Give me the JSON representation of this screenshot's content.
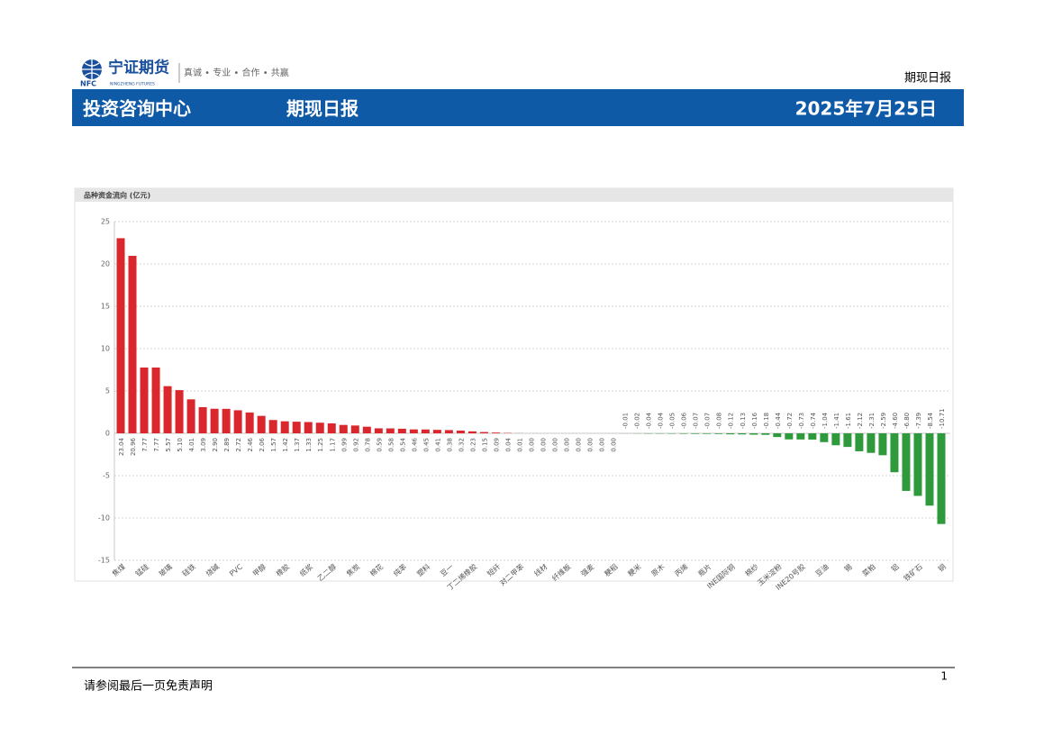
{
  "header": {
    "logo_text": "宁证期货",
    "logo_abbr": "NFC",
    "logo_en": "NINGZHENG FUTURES",
    "slogan": "真诚 • 专业 • 合作 • 共赢",
    "report_name": "期现日报"
  },
  "banner": {
    "department": "投资咨询中心",
    "title": "期现日报",
    "date": "2025年7月25日"
  },
  "chart_data": {
    "type": "bar",
    "title": "品种资金流向 (亿元)",
    "categories": [
      "焦煤",
      null,
      "锰硅",
      null,
      "玻璃",
      null,
      "硅铁",
      null,
      "烧碱",
      null,
      "PVC",
      null,
      "甲醇",
      null,
      "橡胶",
      null,
      "纸浆",
      null,
      "乙二醇",
      null,
      "焦炭",
      null,
      "棉花",
      null,
      "纯苯",
      null,
      "塑料",
      null,
      "豆一",
      null,
      "丁二烯橡胶",
      null,
      "短纤",
      null,
      "对二甲苯",
      null,
      "线材",
      null,
      "纤维板",
      null,
      "强麦",
      null,
      "粳稻",
      null,
      "粳米",
      null,
      "原木",
      null,
      "丙烯",
      null,
      "瓶片",
      null,
      "INE国际铜",
      null,
      "棉纱",
      null,
      "玉米淀粉",
      null,
      "INE20号胶",
      null,
      "豆油",
      null,
      "锡",
      null,
      "菜粕",
      null,
      "铝",
      null,
      "铁矿石",
      null,
      "铜"
    ],
    "values": [
      23.04,
      20.96,
      7.77,
      7.77,
      5.57,
      5.1,
      4.01,
      3.09,
      2.9,
      2.89,
      2.72,
      2.46,
      2.06,
      1.57,
      1.42,
      1.37,
      1.33,
      1.25,
      1.17,
      0.99,
      0.92,
      0.78,
      0.59,
      0.58,
      0.54,
      0.46,
      0.45,
      0.41,
      0.38,
      0.32,
      0.23,
      0.15,
      0.09,
      0.04,
      0.01,
      0,
      0,
      0,
      0,
      0,
      0,
      0,
      0,
      -0.01,
      -0.02,
      -0.04,
      -0.04,
      -0.05,
      -0.06,
      -0.07,
      -0.07,
      -0.08,
      -0.12,
      -0.13,
      -0.16,
      -0.18,
      -0.44,
      -0.72,
      -0.73,
      -0.74,
      -1.04,
      -1.41,
      -1.61,
      -2.12,
      -2.31,
      -2.59,
      -4.6,
      -6.8,
      -7.39,
      -8.54,
      -10.71
    ],
    "value_labels": [
      "23.04",
      "20.96",
      "7.77",
      "7.77",
      "5.57",
      "5.10",
      "4.01",
      "3.09",
      "2.90",
      "2.89",
      "2.72",
      "2.46",
      "2.06",
      "1.57",
      "1.42",
      "1.37",
      "1.33",
      "1.25",
      "1.17",
      "0.99",
      "0.92",
      "0.78",
      "0.59",
      "0.58",
      "0.54",
      "0.46",
      "0.45",
      "0.41",
      "0.38",
      "0.32",
      "0.23",
      "0.15",
      "0.09",
      "0.04",
      "0.01",
      "0.00",
      "0.00",
      "0.00",
      "0.00",
      "0.00",
      "0.00",
      "0.00",
      "0.00",
      "-0.01",
      "-0.02",
      "-0.04",
      "-0.04",
      "-0.05",
      "-0.06",
      "-0.07",
      "-0.07",
      "-0.08",
      "-0.12",
      "-0.13",
      "-0.16",
      "-0.18",
      "-0.44",
      "-0.72",
      "-0.73",
      "-0.74",
      "-1.04",
      "-1.41",
      "-1.61",
      "-2.12",
      "-2.31",
      "-2.59",
      "-4.60",
      "-6.80",
      "-7.39",
      "-8.54",
      "-10.71"
    ],
    "positive_color": "#d9272d",
    "negative_color": "#2f9a3c",
    "ylim": [
      -15,
      25
    ],
    "yticks": [
      -15,
      -10,
      -5,
      0,
      5,
      10,
      15,
      20,
      25
    ],
    "grid": true
  },
  "footer": {
    "disclaimer": "请参阅最后一页免责声明",
    "page": 1
  }
}
